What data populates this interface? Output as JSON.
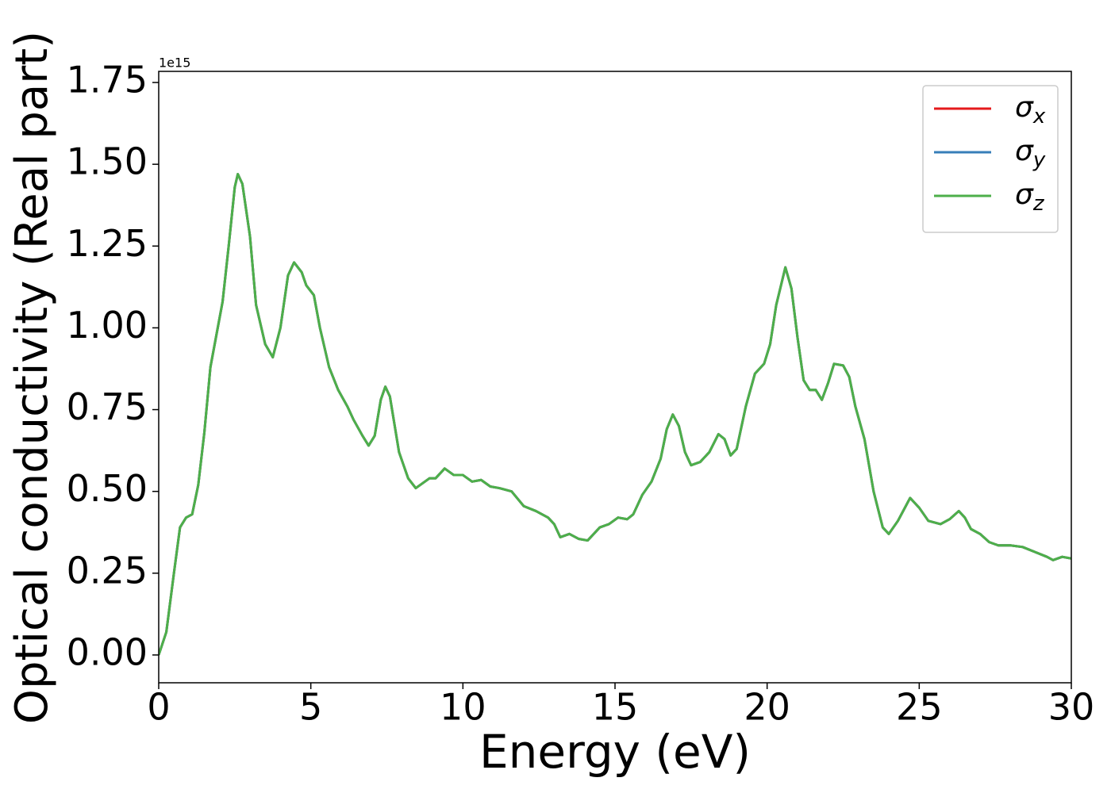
{
  "chart_data": {
    "type": "line",
    "xlabel": "Energy (eV)",
    "ylabel": "Optical conductivity (Real part)",
    "y_offset_label": "1e15",
    "x": [
      0,
      0.25,
      0.5,
      0.7,
      0.9,
      1.1,
      1.3,
      1.5,
      1.7,
      1.9,
      2.1,
      2.3,
      2.5,
      2.6,
      2.75,
      3.0,
      3.2,
      3.5,
      3.75,
      4.0,
      4.25,
      4.45,
      4.7,
      4.85,
      5.1,
      5.3,
      5.6,
      5.9,
      6.2,
      6.4,
      6.7,
      6.9,
      7.1,
      7.3,
      7.45,
      7.6,
      7.9,
      8.2,
      8.45,
      8.6,
      8.9,
      9.1,
      9.4,
      9.7,
      10.0,
      10.3,
      10.6,
      10.9,
      11.2,
      11.6,
      12.0,
      12.4,
      12.8,
      13.0,
      13.2,
      13.5,
      13.8,
      14.1,
      14.5,
      14.8,
      15.1,
      15.4,
      15.6,
      15.9,
      16.2,
      16.5,
      16.7,
      16.9,
      17.1,
      17.3,
      17.5,
      17.8,
      18.1,
      18.4,
      18.6,
      18.8,
      19.0,
      19.3,
      19.6,
      19.9,
      20.1,
      20.3,
      20.6,
      20.8,
      21.0,
      21.2,
      21.4,
      21.6,
      21.8,
      22.0,
      22.2,
      22.5,
      22.7,
      22.9,
      23.2,
      23.5,
      23.8,
      24.0,
      24.3,
      24.7,
      25.0,
      25.3,
      25.7,
      26.0,
      26.3,
      26.5,
      26.7,
      27.0,
      27.3,
      27.6,
      28.0,
      28.4,
      28.8,
      29.2,
      29.4,
      29.7,
      30.0
    ],
    "series": [
      {
        "name": "σx",
        "color": "#e41a1c",
        "values": [
          0,
          0.07,
          0.25,
          0.39,
          0.42,
          0.43,
          0.52,
          0.68,
          0.88,
          0.98,
          1.08,
          1.25,
          1.43,
          1.47,
          1.44,
          1.28,
          1.07,
          0.95,
          0.91,
          1.0,
          1.16,
          1.2,
          1.17,
          1.13,
          1.1,
          1.0,
          0.88,
          0.81,
          0.76,
          0.72,
          0.67,
          0.64,
          0.67,
          0.78,
          0.82,
          0.79,
          0.62,
          0.54,
          0.51,
          0.52,
          0.54,
          0.54,
          0.57,
          0.55,
          0.55,
          0.53,
          0.535,
          0.515,
          0.51,
          0.5,
          0.455,
          0.44,
          0.42,
          0.4,
          0.36,
          0.37,
          0.355,
          0.35,
          0.39,
          0.4,
          0.42,
          0.415,
          0.43,
          0.49,
          0.53,
          0.6,
          0.69,
          0.735,
          0.7,
          0.62,
          0.58,
          0.59,
          0.62,
          0.675,
          0.66,
          0.61,
          0.63,
          0.76,
          0.86,
          0.89,
          0.95,
          1.07,
          1.185,
          1.12,
          0.97,
          0.84,
          0.81,
          0.81,
          0.78,
          0.83,
          0.89,
          0.885,
          0.85,
          0.76,
          0.66,
          0.5,
          0.39,
          0.37,
          0.41,
          0.48,
          0.45,
          0.41,
          0.4,
          0.415,
          0.44,
          0.42,
          0.385,
          0.37,
          0.345,
          0.335,
          0.335,
          0.33,
          0.315,
          0.3,
          0.29,
          0.3,
          0.295
        ]
      },
      {
        "name": "σy",
        "color": "#377eb8",
        "values": [
          0,
          0.07,
          0.25,
          0.39,
          0.42,
          0.43,
          0.52,
          0.68,
          0.88,
          0.98,
          1.08,
          1.25,
          1.43,
          1.47,
          1.44,
          1.28,
          1.07,
          0.95,
          0.91,
          1.0,
          1.16,
          1.2,
          1.17,
          1.13,
          1.1,
          1.0,
          0.88,
          0.81,
          0.76,
          0.72,
          0.67,
          0.64,
          0.67,
          0.78,
          0.82,
          0.79,
          0.62,
          0.54,
          0.51,
          0.52,
          0.54,
          0.54,
          0.57,
          0.55,
          0.55,
          0.53,
          0.535,
          0.515,
          0.51,
          0.5,
          0.455,
          0.44,
          0.42,
          0.4,
          0.36,
          0.37,
          0.355,
          0.35,
          0.39,
          0.4,
          0.42,
          0.415,
          0.43,
          0.49,
          0.53,
          0.6,
          0.69,
          0.735,
          0.7,
          0.62,
          0.58,
          0.59,
          0.62,
          0.675,
          0.66,
          0.61,
          0.63,
          0.76,
          0.86,
          0.89,
          0.95,
          1.07,
          1.185,
          1.12,
          0.97,
          0.84,
          0.81,
          0.81,
          0.78,
          0.83,
          0.89,
          0.885,
          0.85,
          0.76,
          0.66,
          0.5,
          0.39,
          0.37,
          0.41,
          0.48,
          0.45,
          0.41,
          0.4,
          0.415,
          0.44,
          0.42,
          0.385,
          0.37,
          0.345,
          0.335,
          0.335,
          0.33,
          0.315,
          0.3,
          0.29,
          0.3,
          0.295
        ]
      },
      {
        "name": "σz",
        "color": "#4daf4a",
        "values": [
          0,
          0.07,
          0.25,
          0.39,
          0.42,
          0.43,
          0.52,
          0.68,
          0.88,
          0.98,
          1.08,
          1.25,
          1.43,
          1.47,
          1.44,
          1.28,
          1.07,
          0.95,
          0.91,
          1.0,
          1.16,
          1.2,
          1.17,
          1.13,
          1.1,
          1.0,
          0.88,
          0.81,
          0.76,
          0.72,
          0.67,
          0.64,
          0.67,
          0.78,
          0.82,
          0.79,
          0.62,
          0.54,
          0.51,
          0.52,
          0.54,
          0.54,
          0.57,
          0.55,
          0.55,
          0.53,
          0.535,
          0.515,
          0.51,
          0.5,
          0.455,
          0.44,
          0.42,
          0.4,
          0.36,
          0.37,
          0.355,
          0.35,
          0.39,
          0.4,
          0.42,
          0.415,
          0.43,
          0.49,
          0.53,
          0.6,
          0.69,
          0.735,
          0.7,
          0.62,
          0.58,
          0.59,
          0.62,
          0.675,
          0.66,
          0.61,
          0.63,
          0.76,
          0.86,
          0.89,
          0.95,
          1.07,
          1.185,
          1.12,
          0.97,
          0.84,
          0.81,
          0.81,
          0.78,
          0.83,
          0.89,
          0.885,
          0.85,
          0.76,
          0.66,
          0.5,
          0.39,
          0.37,
          0.41,
          0.48,
          0.45,
          0.41,
          0.4,
          0.415,
          0.44,
          0.42,
          0.385,
          0.37,
          0.345,
          0.335,
          0.335,
          0.33,
          0.315,
          0.3,
          0.29,
          0.3,
          0.295
        ]
      }
    ],
    "xlim": [
      0,
      30
    ],
    "xticks": [
      0,
      5,
      10,
      15,
      20,
      25,
      30
    ],
    "ylim": [
      -0.085,
      1.784
    ],
    "yticks": [
      {
        "value": 0,
        "label": "0.00"
      },
      0.25,
      {
        "value": 0.5,
        "label": "0.50"
      },
      0.75,
      {
        "value": 1,
        "label": "1.00"
      },
      1.25,
      {
        "value": 1.5,
        "label": "1.50"
      },
      1.75
    ],
    "legend": "upper right",
    "grid": false
  }
}
